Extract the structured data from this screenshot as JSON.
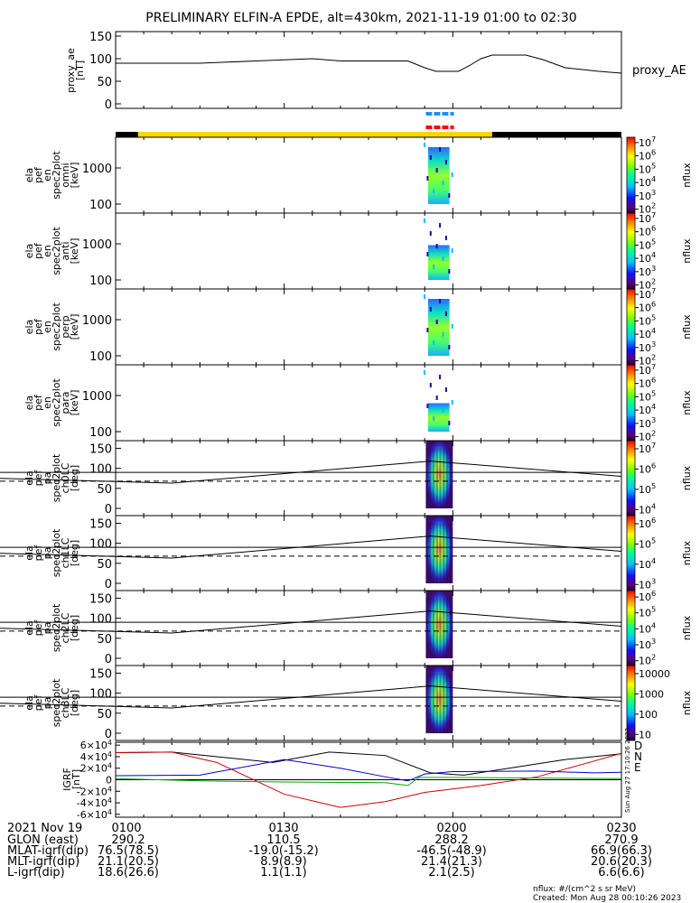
{
  "chart_data": {
    "type": "spectrogram-stack",
    "title": "PRELIMINARY ELFIN-A EPDE, alt=430km, 2021-11-19 01:00 to 02:30",
    "x_range": [
      "01:00",
      "02:30"
    ],
    "x_ticks": [
      {
        "t": 0,
        "label": "0100"
      },
      {
        "t": 30,
        "label": "0130"
      },
      {
        "t": 60,
        "label": "0200"
      },
      {
        "t": 90,
        "label": "0230"
      }
    ],
    "ae_panel": {
      "ylabel": [
        "proxy_ae",
        "[nT]"
      ],
      "ylim": [
        -10,
        160
      ],
      "yticks": [
        "0",
        "50",
        "100",
        "150"
      ],
      "series_name": "proxy_AE",
      "points": [
        [
          0,
          90
        ],
        [
          15,
          90
        ],
        [
          25,
          95
        ],
        [
          35,
          100
        ],
        [
          40,
          95
        ],
        [
          45,
          95
        ],
        [
          52,
          95
        ],
        [
          55,
          80
        ],
        [
          57,
          72
        ],
        [
          61,
          72
        ],
        [
          63,
          85
        ],
        [
          65,
          100
        ],
        [
          67,
          108
        ],
        [
          73,
          108
        ],
        [
          76,
          98
        ],
        [
          80,
          80
        ],
        [
          86,
          72
        ],
        [
          90,
          68
        ]
      ]
    },
    "bars": [
      {
        "color": "#1e90ff",
        "dashed": true,
        "x": [
          55.2,
          60.2
        ]
      },
      {
        "color": "#ff0000",
        "dashed": true,
        "x": [
          55.2,
          60.2
        ]
      }
    ],
    "state_bar": [
      {
        "x": [
          0,
          4
        ],
        "color": "#000000"
      },
      {
        "x": [
          4,
          67
        ],
        "color": "#ffd700"
      },
      {
        "x": [
          67,
          90
        ],
        "color": "#000000"
      }
    ],
    "energy_panels": [
      {
        "ylabel": [
          "ela",
          "pef",
          "en",
          "spec2plot",
          "omni",
          "[keV]"
        ],
        "yticks": [
          "100",
          "1000"
        ],
        "ztitle": "nflux",
        "zticks": [
          "10^2",
          "10^3",
          "10^4",
          "10^5",
          "10^6",
          "10^7"
        ]
      },
      {
        "ylabel": [
          "ela",
          "pef",
          "en",
          "spec2plot",
          "anti",
          "[keV]"
        ],
        "yticks": [
          "100",
          "1000"
        ],
        "ztitle": "nflux",
        "zticks": [
          "10^2",
          "10^3",
          "10^4",
          "10^5",
          "10^6",
          "10^7"
        ]
      },
      {
        "ylabel": [
          "ela",
          "pef",
          "en",
          "spec2plot",
          "perp",
          "[keV]"
        ],
        "yticks": [
          "100",
          "1000"
        ],
        "ztitle": "nflux",
        "zticks": [
          "10^2",
          "10^3",
          "10^4",
          "10^5",
          "10^6",
          "10^7"
        ]
      },
      {
        "ylabel": [
          "ela",
          "pef",
          "en",
          "spec2plot",
          "para",
          "[keV]"
        ],
        "yticks": [
          "100",
          "1000"
        ],
        "ztitle": "nflux",
        "zticks": [
          "10^2",
          "10^3",
          "10^4",
          "10^5",
          "10^6",
          "10^7"
        ]
      }
    ],
    "pa_panels": [
      {
        "ylabel": [
          "ela",
          "pef",
          "pa",
          "spec2plot",
          "ch0LC",
          "[deg]"
        ],
        "yticks": [
          "0",
          "50",
          "100",
          "150"
        ],
        "ztitle": "nflux",
        "zticks": [
          "10^4",
          "10^5",
          "10^6",
          "10^7"
        ]
      },
      {
        "ylabel": [
          "ela",
          "pef",
          "pa",
          "spec2plot",
          "ch1LC",
          "[deg]"
        ],
        "yticks": [
          "0",
          "50",
          "100",
          "150"
        ],
        "ztitle": "nflux",
        "zticks": [
          "10^3",
          "10^4",
          "10^5",
          "10^6"
        ]
      },
      {
        "ylabel": [
          "ela",
          "pef",
          "pa",
          "spec2plot",
          "ch2LC",
          "[deg]"
        ],
        "yticks": [
          "0",
          "50",
          "100",
          "150"
        ],
        "ztitle": "nflux",
        "zticks": [
          "10^2",
          "10^3",
          "10^4",
          "10^5",
          "10^6"
        ]
      },
      {
        "ylabel": [
          "ela",
          "pef",
          "pa",
          "spec2plot",
          "ch3LC",
          "[deg]"
        ],
        "yticks": [
          "0",
          "50",
          "100",
          "150"
        ],
        "ztitle": "nflux",
        "zticks": [
          "10",
          "100",
          "1000",
          "10000"
        ]
      }
    ],
    "igrf_panel": {
      "ylabel": [
        "IGRF",
        "[nT]"
      ],
      "ylim": [
        -65000,
        65000
      ],
      "yticks": [
        "-6×10^4",
        "-4×10^4",
        "-2×10^4",
        "0",
        "2×10^4",
        "4×10^4",
        "6×10^4"
      ],
      "legend": [
        {
          "label": "D",
          "color": "#cc0000"
        },
        {
          "label": "N",
          "color": "#0000cc"
        },
        {
          "label": "E",
          "color": "#00aa00"
        }
      ],
      "side_note": "Sun Aug 27 17:10:26 2023"
    },
    "ephemeris": {
      "header": "2021 Nov 19",
      "rows": [
        {
          "name": "GLON (east)",
          "values": [
            "290.2",
            "110.5",
            "288.2",
            "270.9"
          ]
        },
        {
          "name": "MLAT-igrf(dip)",
          "values": [
            "76.5(78.5)",
            "-19.0(-15.2)",
            "-46.5(-48.9)",
            "66.9(66.3)"
          ]
        },
        {
          "name": "MLT-igrf(dip)",
          "values": [
            "21.1(20.5)",
            "8.9(8.9)",
            "21.4(21.3)",
            "20.6(20.3)"
          ]
        },
        {
          "name": "L-igrf(dip)",
          "values": [
            "18.6(26.6)",
            "1.1(1.1)",
            "2.1(2.5)",
            "6.6(6.6)"
          ]
        }
      ]
    },
    "footer": [
      "nflux: #/(cm^2 s sr MeV)",
      "Created: Mon Aug 28 00:10:26 2023"
    ]
  }
}
